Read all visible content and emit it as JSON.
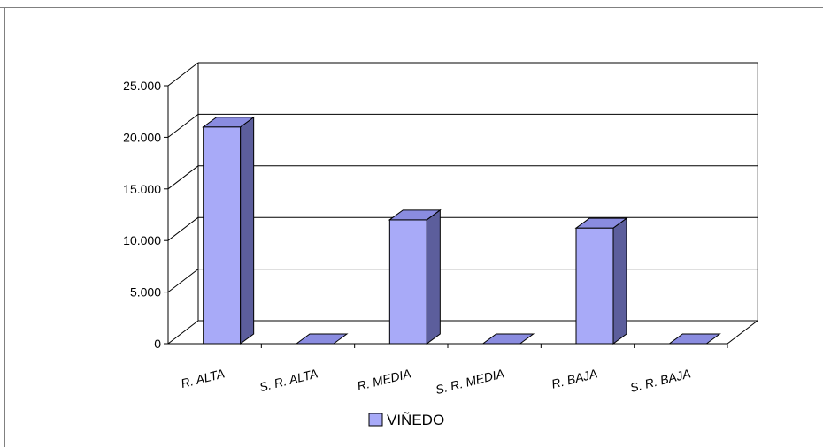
{
  "chart_data": {
    "type": "bar",
    "categories": [
      "R. ALTA",
      "S. R. ALTA",
      "R. MEDIA",
      "S. R. MEDIA",
      "R. BAJA",
      "S. R. BAJA"
    ],
    "series": [
      {
        "name": "VIÑEDO",
        "values": [
          21000,
          0,
          12000,
          0,
          11200,
          0
        ]
      }
    ],
    "ylim": [
      0,
      25000
    ],
    "yticks": [
      0,
      5000,
      10000,
      15000,
      20000,
      25000
    ],
    "ytick_labels": [
      "0",
      "5.000",
      "10.000",
      "15.000",
      "20.000",
      "25.000"
    ],
    "grid": true,
    "legend": "bottom",
    "colors": {
      "bar_front": "#a8aaf8",
      "bar_top": "#8a8ce0",
      "bar_side": "#5c5e9c",
      "grid": "#000000",
      "frame": "#808080"
    }
  }
}
